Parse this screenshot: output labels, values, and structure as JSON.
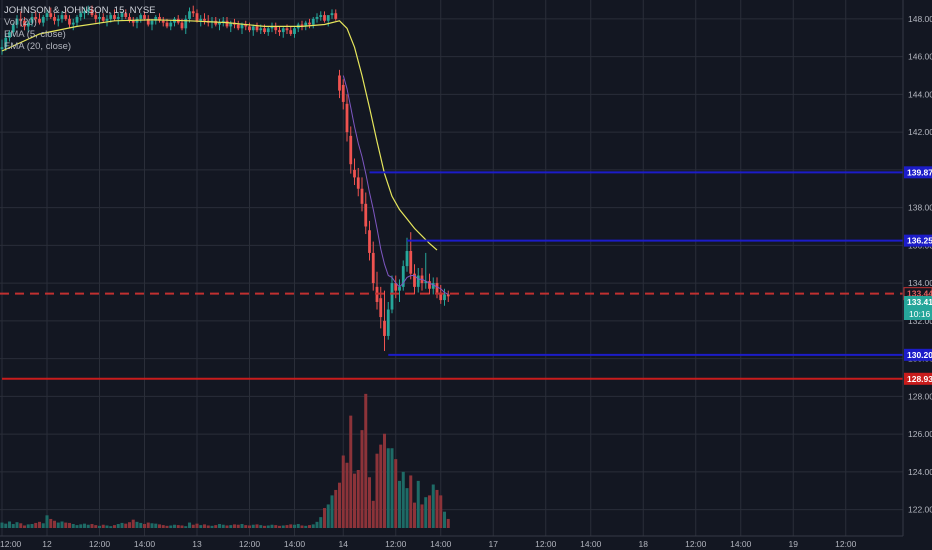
{
  "legend": {
    "title": "JOHNSON & JOHNSON, 15, NYSE",
    "vol": "Vol (20)",
    "ema5": "EMA (5, close)",
    "ema20": "EMA (20, close)"
  },
  "colors": {
    "background": "#131722",
    "grid": "#2a2e39",
    "up": "#26a69a",
    "down": "#ef5350",
    "vol_up": "#1e6b66",
    "vol_down": "#8c3339",
    "ema5": "#7e57c2",
    "ema20": "#e6e65c",
    "hline_blue": "#1c1cc8",
    "hline_red": "#c81c1c",
    "current_dash": "#c03030",
    "axis_text": "#b2b5be"
  },
  "chart_data": {
    "type": "candlestick",
    "symbol": "JOHNSON & JOHNSON",
    "interval": "15",
    "exchange": "NYSE",
    "x_ticks": [
      {
        "label": "12:00",
        "i": 0
      },
      {
        "label": "12",
        "i": 12
      },
      {
        "label": "12:00",
        "i": 26
      },
      {
        "label": "14:00",
        "i": 38
      },
      {
        "label": "13",
        "i": 52
      },
      {
        "label": "12:00",
        "i": 66
      },
      {
        "label": "14:00",
        "i": 78
      },
      {
        "label": "14",
        "i": 91
      },
      {
        "label": "12:00",
        "i": 105
      },
      {
        "label": "14:00",
        "i": 117
      },
      {
        "label": "17",
        "i": 131
      },
      {
        "label": "12:00",
        "i": 145
      },
      {
        "label": "14:00",
        "i": 157
      },
      {
        "label": "18",
        "i": 171
      },
      {
        "label": "12:00",
        "i": 185
      },
      {
        "label": "14:00",
        "i": 197
      },
      {
        "label": "19",
        "i": 211
      },
      {
        "label": "12:00",
        "i": 225
      }
    ],
    "y_ticks": [
      148.0,
      146.0,
      144.0,
      142.0,
      140.0,
      138.0,
      136.0,
      134.0,
      132.0,
      130.0,
      128.0,
      126.0,
      124.0,
      122.0
    ],
    "y_range": [
      120.6,
      149.0
    ],
    "candles": [
      [
        146.4,
        146.9,
        146.1,
        146.5
      ],
      [
        146.5,
        147.2,
        146.3,
        147.0
      ],
      [
        147.0,
        147.4,
        146.8,
        147.3
      ],
      [
        147.3,
        147.8,
        147.1,
        147.7
      ],
      [
        147.7,
        148.2,
        147.5,
        148.0
      ],
      [
        148.0,
        148.4,
        147.6,
        147.9
      ],
      [
        147.9,
        148.1,
        147.4,
        147.6
      ],
      [
        147.6,
        147.9,
        147.3,
        147.8
      ],
      [
        147.8,
        148.3,
        147.6,
        148.1
      ],
      [
        148.1,
        148.4,
        147.8,
        148.0
      ],
      [
        148.0,
        148.3,
        147.7,
        147.8
      ],
      [
        147.8,
        148.2,
        147.6,
        148.1
      ],
      [
        148.1,
        148.5,
        147.9,
        148.3
      ],
      [
        148.3,
        148.6,
        148.0,
        148.1
      ],
      [
        148.1,
        148.3,
        147.7,
        147.9
      ],
      [
        147.9,
        148.2,
        147.6,
        148.0
      ],
      [
        148.0,
        148.4,
        147.8,
        148.2
      ],
      [
        148.2,
        148.5,
        147.9,
        148.0
      ],
      [
        148.0,
        148.2,
        147.5,
        147.7
      ],
      [
        147.7,
        148.0,
        147.4,
        147.8
      ],
      [
        147.8,
        148.2,
        147.6,
        148.1
      ],
      [
        148.1,
        148.4,
        147.9,
        148.3
      ],
      [
        148.3,
        148.6,
        148.0,
        148.4
      ],
      [
        148.4,
        148.7,
        148.2,
        148.5
      ],
      [
        148.5,
        148.7,
        148.1,
        148.2
      ],
      [
        148.2,
        148.4,
        147.8,
        148.0
      ],
      [
        148.0,
        148.3,
        147.7,
        148.1
      ],
      [
        148.1,
        148.3,
        147.8,
        147.9
      ],
      [
        147.9,
        148.2,
        147.6,
        148.0
      ],
      [
        148.0,
        148.3,
        147.8,
        148.2
      ],
      [
        148.2,
        148.5,
        147.9,
        148.0
      ],
      [
        148.0,
        148.3,
        147.7,
        148.1
      ],
      [
        148.1,
        148.4,
        147.9,
        148.3
      ],
      [
        148.3,
        148.5,
        148.0,
        148.1
      ],
      [
        148.1,
        148.3,
        147.8,
        147.9
      ],
      [
        147.9,
        148.1,
        147.6,
        147.8
      ],
      [
        147.8,
        148.1,
        147.5,
        148.0
      ],
      [
        148.0,
        148.3,
        147.8,
        148.2
      ],
      [
        148.2,
        148.4,
        147.9,
        148.0
      ],
      [
        148.0,
        148.2,
        147.6,
        147.7
      ],
      [
        147.7,
        148.0,
        147.4,
        147.9
      ],
      [
        147.9,
        148.2,
        147.7,
        148.1
      ],
      [
        148.1,
        148.3,
        147.8,
        147.9
      ],
      [
        147.9,
        148.1,
        147.6,
        147.8
      ],
      [
        147.8,
        148.0,
        147.5,
        147.6
      ],
      [
        147.6,
        147.9,
        147.4,
        147.8
      ],
      [
        147.8,
        148.1,
        147.6,
        148.0
      ],
      [
        148.0,
        148.2,
        147.7,
        147.8
      ],
      [
        147.8,
        148.0,
        147.4,
        147.5
      ],
      [
        147.5,
        148.2,
        147.2,
        148.0
      ],
      [
        148.0,
        148.6,
        147.8,
        148.4
      ],
      [
        148.4,
        148.7,
        148.1,
        148.3
      ],
      [
        148.3,
        148.5,
        147.8,
        147.9
      ],
      [
        147.9,
        148.2,
        147.6,
        148.0
      ],
      [
        148.0,
        148.3,
        147.7,
        147.9
      ],
      [
        147.9,
        148.2,
        147.6,
        147.8
      ],
      [
        147.8,
        148.1,
        147.5,
        147.9
      ],
      [
        147.9,
        148.1,
        147.6,
        147.7
      ],
      [
        147.7,
        148.0,
        147.4,
        147.8
      ],
      [
        147.8,
        148.1,
        147.6,
        147.9
      ],
      [
        147.9,
        148.1,
        147.5,
        147.6
      ],
      [
        147.6,
        147.9,
        147.3,
        147.8
      ],
      [
        147.8,
        148.0,
        147.5,
        147.7
      ],
      [
        147.7,
        147.9,
        147.4,
        147.5
      ],
      [
        147.5,
        147.8,
        147.2,
        147.7
      ],
      [
        147.7,
        147.9,
        147.4,
        147.6
      ],
      [
        147.6,
        147.8,
        147.3,
        147.4
      ],
      [
        147.4,
        147.7,
        147.1,
        147.6
      ],
      [
        147.6,
        147.8,
        147.3,
        147.4
      ],
      [
        147.4,
        147.7,
        147.2,
        147.5
      ],
      [
        147.5,
        147.7,
        147.2,
        147.3
      ],
      [
        147.3,
        147.6,
        147.1,
        147.5
      ],
      [
        147.5,
        147.8,
        147.3,
        147.6
      ],
      [
        147.6,
        147.8,
        147.2,
        147.4
      ],
      [
        147.4,
        147.6,
        147.1,
        147.3
      ],
      [
        147.3,
        147.6,
        147.0,
        147.5
      ],
      [
        147.5,
        147.7,
        147.2,
        147.4
      ],
      [
        147.4,
        147.6,
        147.1,
        147.2
      ],
      [
        147.2,
        147.6,
        147.0,
        147.5
      ],
      [
        147.5,
        147.8,
        147.3,
        147.7
      ],
      [
        147.7,
        147.9,
        147.4,
        147.6
      ],
      [
        147.6,
        147.9,
        147.4,
        147.8
      ],
      [
        147.8,
        148.0,
        147.5,
        147.7
      ],
      [
        147.7,
        148.1,
        147.5,
        148.0
      ],
      [
        148.0,
        148.3,
        147.8,
        148.1
      ],
      [
        148.1,
        148.4,
        147.9,
        148.2
      ],
      [
        148.2,
        148.4,
        147.8,
        147.9
      ],
      [
        147.9,
        148.1,
        147.6,
        148.2
      ],
      [
        148.2,
        148.5,
        148.0,
        148.3
      ],
      [
        148.3,
        148.5,
        147.9,
        148.0
      ],
      [
        145.0,
        145.3,
        143.8,
        144.2
      ],
      [
        144.5,
        144.8,
        143.2,
        143.6
      ],
      [
        143.5,
        144.0,
        141.5,
        142.0
      ],
      [
        141.8,
        142.3,
        139.8,
        140.3
      ],
      [
        140.0,
        140.6,
        139.2,
        139.6
      ],
      [
        139.6,
        140.1,
        138.6,
        139.0
      ],
      [
        139.0,
        139.6,
        137.8,
        138.2
      ],
      [
        138.2,
        138.8,
        136.6,
        137.0
      ],
      [
        136.8,
        137.3,
        135.2,
        135.6
      ],
      [
        135.6,
        136.2,
        133.6,
        134.0
      ],
      [
        133.8,
        134.6,
        132.6,
        133.0
      ],
      [
        133.2,
        133.8,
        131.6,
        132.2
      ],
      [
        132.0,
        133.6,
        130.4,
        131.2
      ],
      [
        131.2,
        133.0,
        131.0,
        132.6
      ],
      [
        132.6,
        134.4,
        132.4,
        134.0
      ],
      [
        134.0,
        134.4,
        133.2,
        133.6
      ],
      [
        133.6,
        134.2,
        133.0,
        133.8
      ],
      [
        133.8,
        135.2,
        133.6,
        134.9
      ],
      [
        134.9,
        136.4,
        134.6,
        135.7
      ],
      [
        135.7,
        136.7,
        134.2,
        134.5
      ],
      [
        134.5,
        135.0,
        133.4,
        133.8
      ],
      [
        133.8,
        134.8,
        133.5,
        134.4
      ],
      [
        134.4,
        134.8,
        133.6,
        134.0
      ],
      [
        134.0,
        135.6,
        133.7,
        134.1
      ],
      [
        134.1,
        134.5,
        133.4,
        133.7
      ],
      [
        133.7,
        134.3,
        133.4,
        134.0
      ],
      [
        134.0,
        134.3,
        133.2,
        133.5
      ],
      [
        133.5,
        133.9,
        132.9,
        133.1
      ],
      [
        133.1,
        133.7,
        132.8,
        133.4
      ],
      [
        133.4,
        133.6,
        133.0,
        133.3
      ]
    ],
    "volume": [
      3.0,
      2.4,
      3.6,
      2.2,
      3.2,
      2.6,
      1.4,
      2.0,
      2.2,
      2.8,
      3.4,
      2.6,
      7.0,
      5.0,
      4.0,
      3.0,
      3.6,
      3.0,
      2.8,
      2.2,
      1.6,
      2.0,
      2.4,
      1.8,
      2.2,
      1.6,
      1.2,
      1.8,
      1.4,
      1.0,
      1.6,
      2.2,
      2.8,
      2.4,
      3.2,
      4.6,
      3.4,
      2.8,
      2.2,
      3.0,
      2.6,
      2.4,
      2.0,
      1.6,
      1.2,
      1.4,
      1.8,
      1.6,
      1.4,
      1.0,
      3.0,
      1.8,
      2.4,
      1.6,
      2.0,
      1.4,
      1.2,
      1.6,
      2.2,
      1.8,
      1.4,
      1.6,
      2.0,
      1.8,
      2.2,
      1.6,
      1.4,
      1.8,
      2.0,
      1.6,
      1.2,
      1.4,
      1.8,
      1.6,
      1.2,
      1.4,
      1.6,
      2.0,
      1.8,
      2.2,
      1.4,
      1.2,
      1.6,
      2.0,
      3.4,
      6.0,
      11.0,
      13.0,
      18.0,
      21.0,
      25.0,
      40.0,
      36.0,
      62.0,
      30.0,
      32.0,
      54.0,
      74.0,
      28.0,
      15.0,
      41.0,
      46.0,
      52.0,
      44.0,
      44.0,
      38.0,
      26.0,
      31.0,
      22.0,
      29.0,
      14.0,
      26.0,
      13.0,
      17.0,
      18.0,
      24.0,
      21.0,
      18.0,
      9.0,
      5.0
    ],
    "vol_max": 80,
    "ema5": [
      [
        91,
        145.0
      ],
      [
        92,
        144.3
      ],
      [
        93,
        143.3
      ],
      [
        94,
        142.3
      ],
      [
        95,
        141.4
      ],
      [
        96,
        140.7
      ],
      [
        97,
        139.8
      ],
      [
        98,
        138.8
      ],
      [
        99,
        137.9
      ],
      [
        100,
        136.9
      ],
      [
        101,
        135.8
      ],
      [
        102,
        135.0
      ],
      [
        103,
        134.4
      ],
      [
        104,
        134.3
      ],
      [
        105,
        134.0
      ],
      [
        106,
        133.8
      ],
      [
        107,
        134.0
      ],
      [
        108,
        134.3
      ],
      [
        109,
        134.4
      ],
      [
        110,
        134.4
      ],
      [
        111,
        134.2
      ],
      [
        112,
        134.2
      ],
      [
        113,
        134.1
      ],
      [
        114,
        134.0
      ],
      [
        115,
        133.9
      ],
      [
        116,
        133.8
      ],
      [
        117,
        133.7
      ],
      [
        118,
        133.5
      ],
      [
        119,
        133.4
      ]
    ],
    "ema20": [
      [
        0,
        146.3
      ],
      [
        10,
        147.2
      ],
      [
        20,
        147.6
      ],
      [
        30,
        147.9
      ],
      [
        40,
        147.95
      ],
      [
        50,
        147.9
      ],
      [
        60,
        147.8
      ],
      [
        70,
        147.6
      ],
      [
        80,
        147.6
      ],
      [
        86,
        147.7
      ],
      [
        90,
        147.9
      ],
      [
        92,
        147.5
      ],
      [
        94,
        146.5
      ],
      [
        96,
        145.0
      ],
      [
        98,
        143.3
      ],
      [
        100,
        141.5
      ],
      [
        102,
        139.8
      ],
      [
        104,
        138.6
      ],
      [
        106,
        137.9
      ],
      [
        108,
        137.4
      ],
      [
        110,
        136.9
      ],
      [
        112,
        136.5
      ],
      [
        114,
        136.1
      ],
      [
        116,
        135.75
      ]
    ],
    "hlines": [
      {
        "price": 139.87,
        "label": "139.87",
        "color": "blue",
        "start_i": 98
      },
      {
        "price": 136.25,
        "label": "136.25",
        "color": "blue",
        "start_i": 108
      },
      {
        "price": 130.2,
        "label": "130.20",
        "color": "blue",
        "start_i": 103
      },
      {
        "price": 128.93,
        "label": "128.93",
        "color": "red",
        "start_i": 0
      }
    ],
    "current_price": {
      "price": 133.44,
      "label": "133.44"
    },
    "last_price": {
      "label": "133.41",
      "countdown": "10:16"
    },
    "grid": true
  }
}
